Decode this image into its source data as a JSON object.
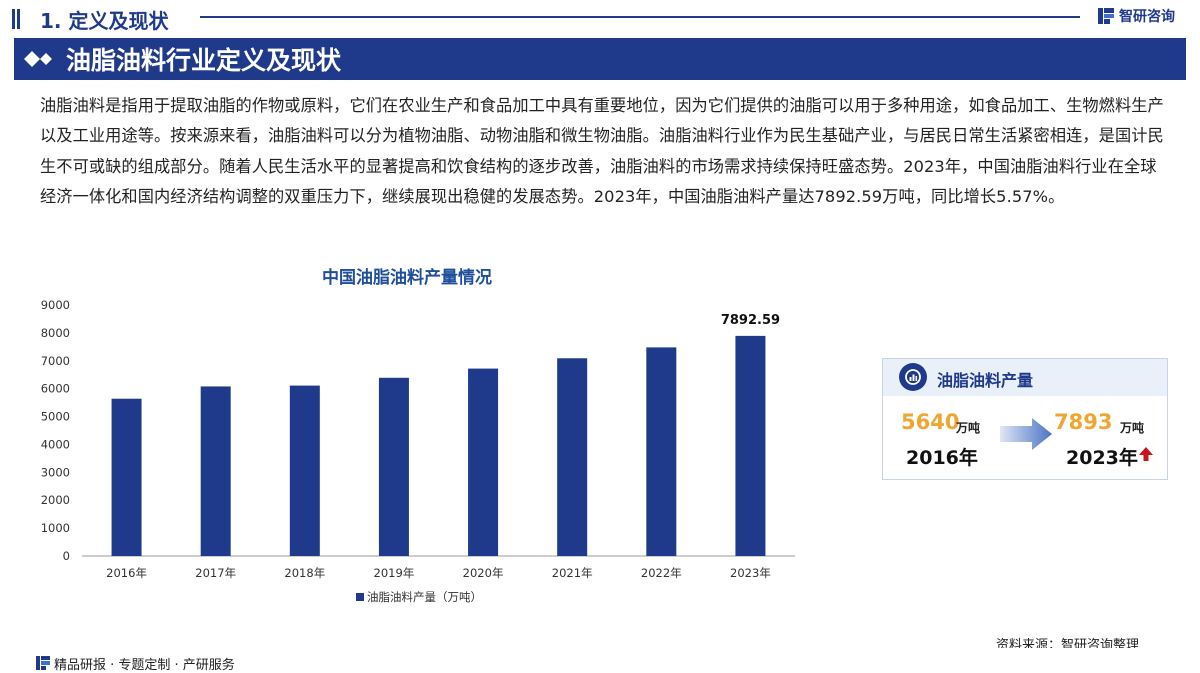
{
  "header": {
    "section_title": "1. 定义及现状",
    "brand": "智研咨询"
  },
  "title_bar": {
    "title": "油脂油料行业定义及现状"
  },
  "intro": {
    "text": "油脂油料是指用于提取油脂的作物或原料，它们在农业生产和食品加工中具有重要地位，因为它们提供的油脂可以用于多种用途，如食品加工、生物燃料生产以及工业用途等。按来源来看，油脂油料可以分为植物油脂、动物油脂和微生物油脂。油脂油料行业作为民生基础产业，与居民日常生活紧密相连，是国计民生不可或缺的组成部分。随着人民生活水平的显著提高和饮食结构的逐步改善，油脂油料的市场需求持续保持旺盛态势。2023年，中国油脂油料行业在全球经济一体化和国内经济结构调整的双重压力下，继续展现出稳健的发展态势。2023年，中国油脂油料产量达7892.59万吨，同比增长5.57%。"
  },
  "chart_data": {
    "type": "bar",
    "title": "中国油脂油料产量情况",
    "categories": [
      "2016年",
      "2017年",
      "2018年",
      "2019年",
      "2020年",
      "2021年",
      "2022年",
      "2023年"
    ],
    "series": [
      {
        "name": "油脂油料产量（万吨）",
        "values": [
          5640,
          6080,
          6110,
          6390,
          6720,
          7090,
          7480,
          7892.59
        ],
        "color": "#1f3a8a"
      }
    ],
    "data_labels": {
      "2023年": "7892.59"
    },
    "ylim": [
      0,
      9000
    ],
    "yticks": [
      0,
      1000,
      2000,
      3000,
      4000,
      5000,
      6000,
      7000,
      8000,
      9000
    ],
    "grid": false,
    "legend_position": "bottom"
  },
  "card": {
    "title": "油脂油料产量",
    "start_value": "5640",
    "start_unit": "万吨",
    "start_year": "2016年",
    "end_value": "7893",
    "end_unit": "万吨",
    "end_year": "2023年",
    "value_color": "#f0a531",
    "up_arrow_color": "#c8161d"
  },
  "footer": {
    "source": "资料来源：智研咨询整理",
    "slogan": "精品研报 · 专题定制 · 产研服务"
  },
  "colors": {
    "brand": "#1f3a8a",
    "card_head": "#eaf0f9"
  }
}
